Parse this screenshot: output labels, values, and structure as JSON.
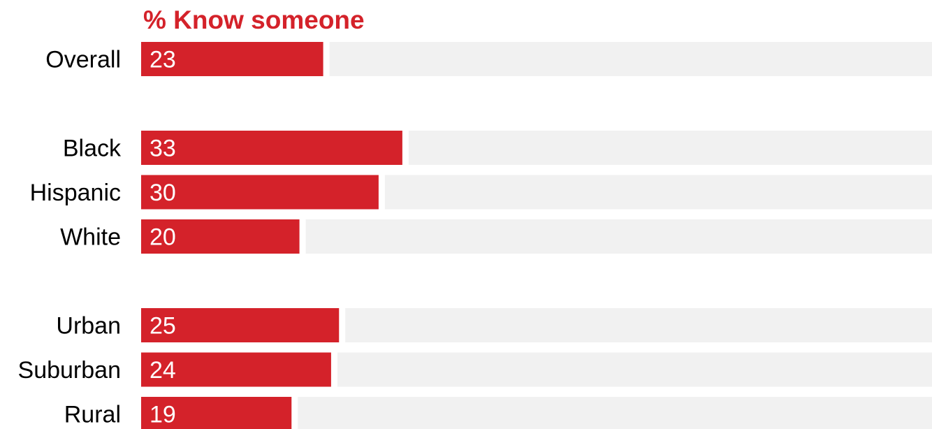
{
  "colors": {
    "bar": "#d4222a",
    "track": "#f1f1f1",
    "title": "#d4222a",
    "label": "#000000",
    "value_text": "#ffffff"
  },
  "chart_data": {
    "type": "bar",
    "orientation": "horizontal",
    "title": "% Know someone",
    "xlim": [
      0,
      100
    ],
    "grid": false,
    "legend": "none",
    "categories": [
      "Overall",
      "Black",
      "Hispanic",
      "White",
      "Urban",
      "Suburban",
      "Rural"
    ],
    "values": [
      23,
      33,
      30,
      20,
      25,
      24,
      19
    ],
    "value_labels": [
      "23",
      "33",
      "30",
      "20",
      "25",
      "24",
      "19"
    ],
    "groups": [
      [
        "Overall"
      ],
      [
        "Black",
        "Hispanic",
        "White"
      ],
      [
        "Urban",
        "Suburban",
        "Rural"
      ]
    ]
  }
}
